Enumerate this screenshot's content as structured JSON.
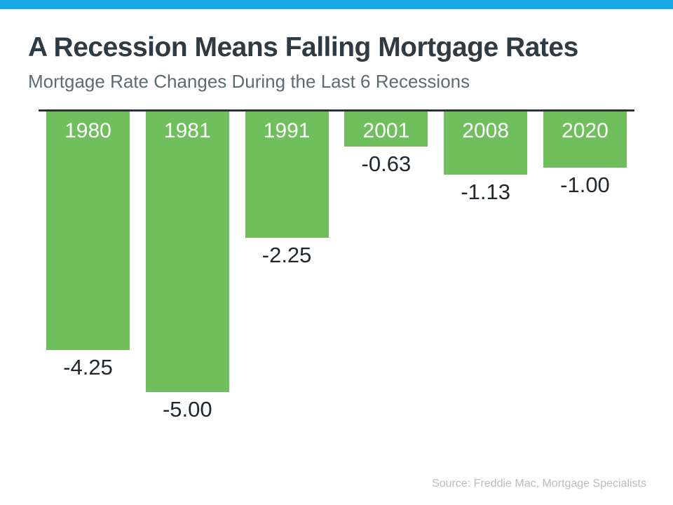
{
  "header": {
    "title": "A Recession Means Falling Mortgage Rates",
    "subtitle": "Mortgage Rate Changes During the Last 6 Recessions"
  },
  "footer": {
    "source": "Source: Freddie Mac, Mortgage Specialists"
  },
  "theme": {
    "accent_blue": "#18a9e9",
    "bar_green": "#6fc05c",
    "baseline_dark": "#2b3238",
    "title_color": "#2f3b44",
    "subtitle_color": "#5d6a72",
    "value_label_color": "#20282e",
    "source_color": "#b6bdc3"
  },
  "chart_data": {
    "type": "bar",
    "title": "A Recession Means Falling Mortgage Rates",
    "subtitle": "Mortgage Rate Changes During the Last 6 Recessions",
    "categories": [
      "1980",
      "1981",
      "1991",
      "2001",
      "2008",
      "2020"
    ],
    "values": [
      -4.25,
      -5.0,
      -2.25,
      -0.63,
      -1.13,
      -1.0
    ],
    "value_labels": [
      "-4.25",
      "-5.00",
      "-2.25",
      "-0.63",
      "-1.13",
      "-1.00"
    ],
    "bar_color": "#6fc05c",
    "ylim": [
      -5.5,
      0
    ],
    "baseline": 0,
    "grid": false,
    "legend": false,
    "orientation": "vertical",
    "bars_hang_below_baseline": true,
    "source": "Source: Freddie Mac, Mortgage Specialists"
  }
}
